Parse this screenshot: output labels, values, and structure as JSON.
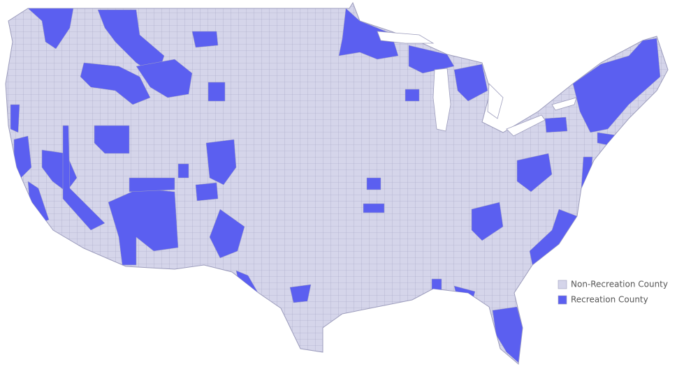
{
  "legend": {
    "items": [
      {
        "label": "Non-Recreation County",
        "color": "#d5d5ea"
      },
      {
        "label": "Recreation County",
        "color": "#5b5ff0"
      }
    ]
  }
}
